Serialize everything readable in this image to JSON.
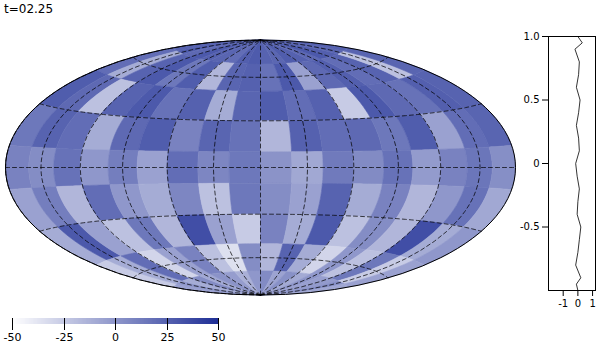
{
  "chart_data": [
    {
      "type": "heatmap",
      "title": "t=02.25",
      "grid": true,
      "field": {
        "lon": [
          -170,
          -150,
          -130,
          -110,
          -90,
          -70,
          -50,
          -30,
          -10,
          10,
          30,
          50,
          70,
          90,
          110,
          130,
          150,
          170
        ],
        "lat": [
          80,
          60,
          40,
          20,
          0,
          -20,
          -40,
          -60,
          -80
        ],
        "values": [
          [
            25,
            28,
            22,
            30,
            26,
            24,
            20,
            27,
            29,
            25,
            23,
            28,
            26,
            22,
            30,
            27,
            24,
            26
          ],
          [
            20,
            -10,
            25,
            30,
            15,
            28,
            -15,
            24,
            26,
            18,
            30,
            -5,
            22,
            27,
            20,
            25,
            -20,
            24
          ],
          [
            28,
            22,
            -20,
            25,
            30,
            18,
            26,
            -10,
            24,
            28,
            20,
            26,
            -25,
            30,
            22,
            18,
            27,
            25
          ],
          [
            15,
            25,
            20,
            -10,
            22,
            28,
            10,
            24,
            18,
            -15,
            26,
            20,
            22,
            15,
            28,
            -5,
            20,
            24
          ],
          [
            10,
            5,
            18,
            0,
            12,
            -5,
            20,
            8,
            15,
            2,
            -8,
            14,
            6,
            18,
            -2,
            10,
            16,
            4
          ],
          [
            -5,
            12,
            -15,
            20,
            0,
            -10,
            8,
            -20,
            15,
            5,
            -5,
            25,
            -10,
            10,
            -15,
            0,
            18,
            -8
          ],
          [
            -10,
            30,
            -5,
            -20,
            15,
            -15,
            35,
            -5,
            -25,
            10,
            -10,
            30,
            -20,
            5,
            -15,
            35,
            -10,
            0
          ],
          [
            -25,
            -10,
            20,
            -30,
            -5,
            10,
            -20,
            -35,
            5,
            -15,
            25,
            -10,
            -30,
            0,
            -20,
            15,
            -25,
            -5
          ],
          [
            -5,
            0,
            -10,
            5,
            -8,
            2,
            -3,
            -12,
            0,
            6,
            -6,
            3,
            -9,
            1,
            -4,
            -2,
            4,
            -7
          ]
        ]
      },
      "colorbar": {
        "range": [
          -50,
          50
        ],
        "ticks": [
          -50,
          -25,
          0,
          25,
          50
        ]
      }
    },
    {
      "type": "line",
      "x": [
        0,
        0.3,
        -0.2,
        0.1,
        0.05,
        -0.1,
        0.15,
        0.05,
        -0.1,
        0.05,
        0.1,
        -0.15,
        -0.05,
        0.1,
        0.0,
        -0.05,
        0.2,
        0.1,
        0.0,
        -0.15,
        0.2,
        -0.1,
        0
      ],
      "values": [
        1.0,
        0.95,
        0.9,
        0.8,
        0.7,
        0.6,
        0.5,
        0.4,
        0.3,
        0.2,
        0.1,
        0.0,
        -0.1,
        -0.2,
        -0.3,
        -0.4,
        -0.5,
        -0.6,
        -0.7,
        -0.8,
        -0.9,
        -0.95,
        -1.0
      ],
      "color": "#000000",
      "xlim": [
        -2,
        1.2
      ],
      "xticks": [
        -1,
        0,
        1
      ],
      "ylim": [
        -1,
        1
      ],
      "yticks": [
        {
          "value": 1,
          "label": "1.0"
        },
        0.5,
        0,
        -0.5
      ]
    }
  ]
}
